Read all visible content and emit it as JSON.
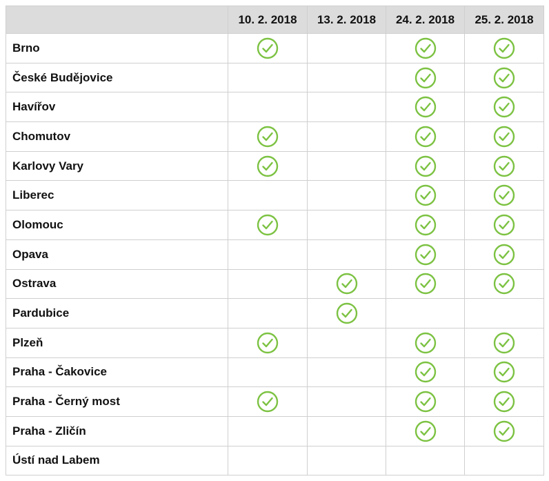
{
  "colors": {
    "check": "#7cc242",
    "header_bg": "#dcdcdc",
    "border": "#cfcfcf"
  },
  "icon": "check-circle-icon",
  "columns": [
    "",
    "10. 2. 2018",
    "13. 2. 2018",
    "24. 2. 2018",
    "25. 2. 2018"
  ],
  "rows": [
    {
      "city": "Brno",
      "checks": [
        true,
        false,
        true,
        true
      ]
    },
    {
      "city": "České Budějovice",
      "checks": [
        false,
        false,
        true,
        true
      ]
    },
    {
      "city": "Havířov",
      "checks": [
        false,
        false,
        true,
        true
      ]
    },
    {
      "city": "Chomutov",
      "checks": [
        true,
        false,
        true,
        true
      ]
    },
    {
      "city": "Karlovy Vary",
      "checks": [
        true,
        false,
        true,
        true
      ]
    },
    {
      "city": "Liberec",
      "checks": [
        false,
        false,
        true,
        true
      ]
    },
    {
      "city": "Olomouc",
      "checks": [
        true,
        false,
        true,
        true
      ]
    },
    {
      "city": "Opava",
      "checks": [
        false,
        false,
        true,
        true
      ]
    },
    {
      "city": "Ostrava",
      "checks": [
        false,
        true,
        true,
        true
      ]
    },
    {
      "city": "Pardubice",
      "checks": [
        false,
        true,
        false,
        false
      ]
    },
    {
      "city": "Plzeň",
      "checks": [
        true,
        false,
        true,
        true
      ]
    },
    {
      "city": "Praha - Čakovice",
      "checks": [
        false,
        false,
        true,
        true
      ]
    },
    {
      "city": "Praha - Černý most",
      "checks": [
        true,
        false,
        true,
        true
      ]
    },
    {
      "city": "Praha - Zličín",
      "checks": [
        false,
        false,
        true,
        true
      ]
    },
    {
      "city": "Ústí nad Labem",
      "checks": [
        false,
        false,
        false,
        false
      ]
    }
  ]
}
